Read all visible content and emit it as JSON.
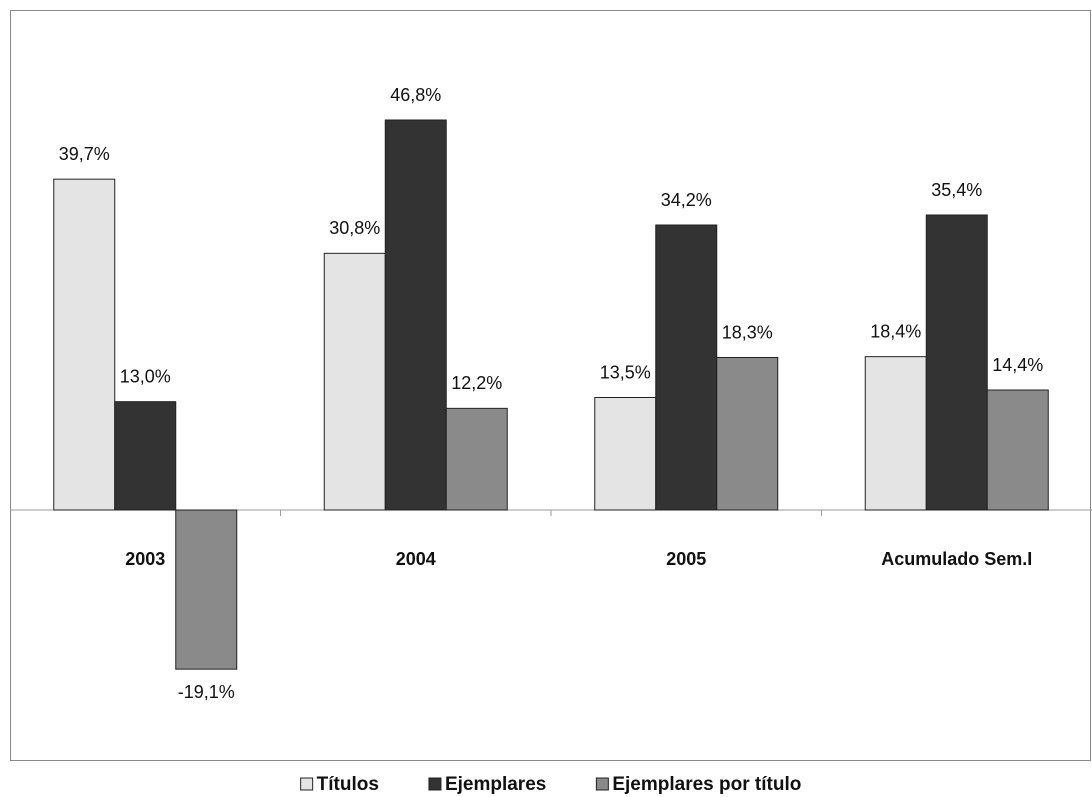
{
  "chart_data": {
    "type": "bar",
    "categories": [
      "2003",
      "2004",
      "2005",
      "Acumulado Sem.I"
    ],
    "series": [
      {
        "name": "Títulos",
        "color": "#e4e4e4",
        "values": [
          39.7,
          30.8,
          13.5,
          18.4
        ],
        "value_labels": [
          "39,7%",
          "30,8%",
          "13,5%",
          "18,4%"
        ]
      },
      {
        "name": "Ejemplares",
        "color": "#333333",
        "values": [
          13.0,
          46.8,
          34.2,
          35.4
        ],
        "value_labels": [
          "13,0%",
          "46,8%",
          "34,2%",
          "35,4%"
        ]
      },
      {
        "name": "Ejemplares por título",
        "color": "#8a8a8a",
        "values": [
          -19.1,
          12.2,
          18.3,
          14.4
        ],
        "value_labels": [
          "-19,1%",
          "12,2%",
          "18,3%",
          "14,4%"
        ]
      }
    ],
    "ylim": [
      -30,
      60
    ],
    "legend": "bottom"
  }
}
